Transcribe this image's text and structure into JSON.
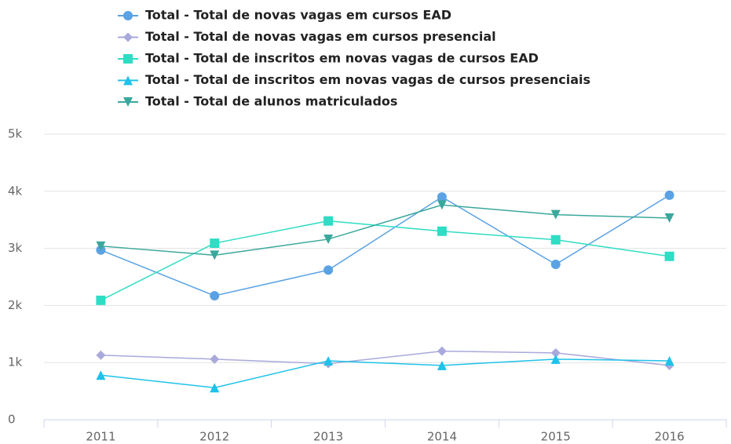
{
  "chart_data": {
    "type": "line",
    "categories": [
      "2011",
      "2012",
      "2013",
      "2014",
      "2015",
      "2016"
    ],
    "series": [
      {
        "name": "Total - Total de novas vagas em cursos EAD",
        "color": "#5aa2e4",
        "marker": "circle",
        "values": [
          2970,
          2170,
          2620,
          3900,
          2720,
          3930
        ]
      },
      {
        "name": "Total - Total de novas vagas em cursos presencial",
        "color": "#a9a9dc",
        "marker": "diamond",
        "values": [
          1130,
          1060,
          980,
          1200,
          1170,
          950
        ]
      },
      {
        "name": "Total - Total de inscritos em novas vagas de cursos EAD",
        "color": "#2fdcc4",
        "marker": "square",
        "values": [
          2090,
          3090,
          3480,
          3300,
          3150,
          2860
        ]
      },
      {
        "name": "Total - Total de inscritos em novas vagas de cursos presenciais",
        "color": "#1ec2ea",
        "marker": "triangle",
        "values": [
          780,
          560,
          1030,
          950,
          1060,
          1030
        ]
      },
      {
        "name": "Total - Total de alunos matriculados",
        "color": "#3aa89c",
        "marker": "triangle-down",
        "values": [
          3040,
          2880,
          3160,
          3760,
          3590,
          3530
        ]
      }
    ],
    "ylim": [
      0,
      5000
    ],
    "yticks": [
      0,
      {
        "value": 1000,
        "label": "1k"
      },
      {
        "value": 2000,
        "label": "2k"
      },
      {
        "value": 3000,
        "label": "3k"
      },
      {
        "value": 4000,
        "label": "4k"
      },
      {
        "value": 5000,
        "label": "5k"
      }
    ],
    "grid": true
  }
}
